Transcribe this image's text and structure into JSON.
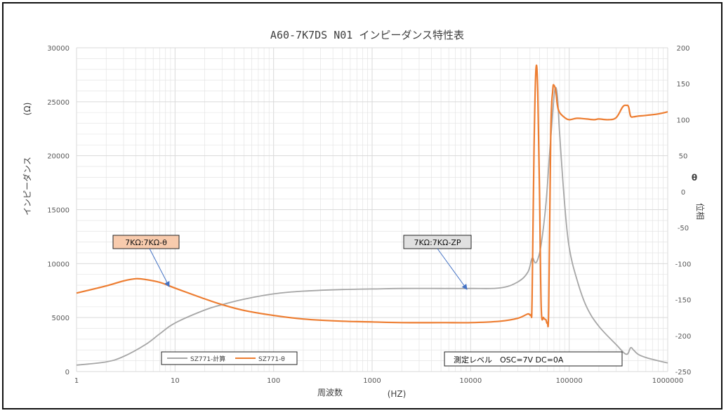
{
  "colors": {
    "zp": "#a6a6a6",
    "theta": "#ed7d31",
    "callout_theta_fill": "#f8cbad",
    "callout_zp_fill": "#e0e0e0",
    "grid": "#d9d9d9",
    "arrow": "#4472c4"
  },
  "chart_data": {
    "type": "line",
    "title": "A60-7K7DS N01 インピーダンス特性表",
    "x_scale": "log",
    "xlim": [
      1,
      1000000
    ],
    "x_ticks": [
      "1",
      "10",
      "100",
      "1000",
      "10000",
      "100000",
      "1000000"
    ],
    "xlabel": "周波数",
    "xunit": "(HZ)",
    "ylabel": "インピーダンス",
    "yunit": "(Ω)",
    "ylim": [
      0,
      30000
    ],
    "y_ticks": [
      "0",
      "5000",
      "10000",
      "15000",
      "20000",
      "25000",
      "30000"
    ],
    "y2label": "位相",
    "y2unit": "θ",
    "y2lim": [
      -250,
      200
    ],
    "y2_ticks": [
      "200",
      "150",
      "100",
      "50",
      "0",
      "-50",
      "-100",
      "-150",
      "-200",
      "-250"
    ],
    "grid": true,
    "legend": {
      "position": "bottom-left",
      "entries": [
        "SZ771-計算",
        "SZ771-θ"
      ]
    },
    "annotations": {
      "theta_callout": "7KΩ:7KΩ-θ",
      "zp_callout": "7KΩ:7KΩ-ZP",
      "note": "測定レベル　OSC=7V  DC=0A"
    },
    "series": [
      {
        "name": "SZ771-計算",
        "axis": "left",
        "x": [
          1,
          2,
          3,
          5,
          7,
          10,
          20,
          30,
          50,
          100,
          200,
          500,
          1000,
          2000,
          5000,
          10000,
          20000,
          30000,
          38000,
          42000,
          45000,
          48000,
          52000,
          58000,
          63000,
          68000,
          72000,
          76000,
          80000,
          90000,
          100000,
          120000,
          150000,
          200000,
          300000,
          380000,
          420000,
          450000,
          500000,
          600000,
          800000,
          1000000
        ],
        "y": [
          600,
          900,
          1400,
          2500,
          3500,
          4500,
          5700,
          6200,
          6700,
          7200,
          7450,
          7600,
          7650,
          7700,
          7700,
          7700,
          7750,
          8300,
          9200,
          10500,
          10100,
          10400,
          11800,
          15500,
          20000,
          24000,
          26200,
          25500,
          22000,
          15500,
          11500,
          8500,
          6000,
          4200,
          2500,
          1600,
          2200,
          2000,
          1600,
          1300,
          1000,
          800
        ]
      },
      {
        "name": "SZ771-θ",
        "axis": "right",
        "x": [
          1,
          2,
          3,
          4,
          5,
          7,
          10,
          20,
          30,
          50,
          100,
          200,
          500,
          1000,
          2000,
          5000,
          10000,
          20000,
          30000,
          38000,
          41000,
          42000,
          44000,
          46000,
          48000,
          50000,
          52000,
          55000,
          58000,
          60000,
          62000,
          65000,
          68000,
          70000,
          73000,
          76000,
          80000,
          90000,
          100000,
          120000,
          150000,
          180000,
          200000,
          250000,
          300000,
          350000,
          380000,
          400000,
          420000,
          450000,
          500000,
          600000,
          800000,
          1000000
        ],
        "y": [
          -141,
          -131,
          -124,
          -121,
          -122,
          -126,
          -134,
          -149,
          -157,
          -165,
          -172,
          -177,
          -180,
          -181,
          -182,
          -182,
          -182,
          -180,
          -176,
          -170,
          -171,
          -150,
          60,
          170,
          140,
          0,
          -160,
          -175,
          -178,
          -182,
          -160,
          80,
          140,
          148,
          140,
          120,
          110,
          103,
          100,
          102,
          101,
          100,
          101,
          100,
          103,
          118,
          120,
          118,
          105,
          104,
          105,
          106,
          108,
          111
        ]
      }
    ]
  }
}
